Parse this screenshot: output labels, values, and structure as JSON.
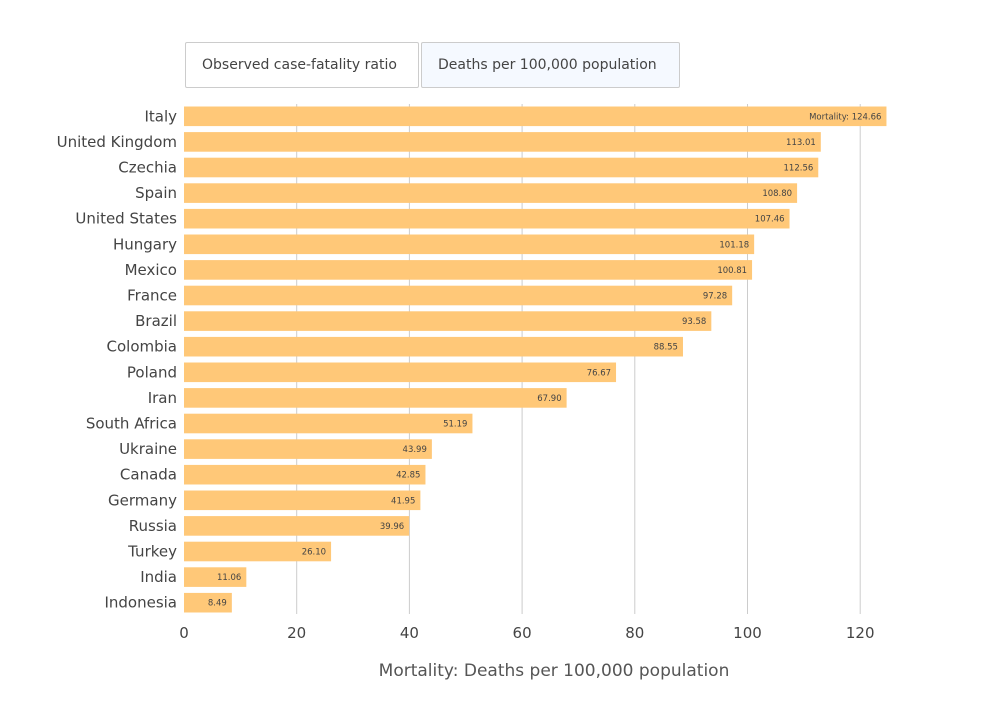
{
  "toggles": {
    "first_label": "Observed case-fatality ratio",
    "second_label": "Deaths per 100,000 population",
    "active": "second"
  },
  "colors": {
    "bar": "#ffc878",
    "grid": "#cccccc",
    "text": "#444444"
  },
  "chart_data": {
    "type": "bar",
    "orientation": "horizontal",
    "categories": [
      "Italy",
      "United Kingdom",
      "Czechia",
      "Spain",
      "United States",
      "Hungary",
      "Mexico",
      "France",
      "Brazil",
      "Colombia",
      "Poland",
      "Iran",
      "South Africa",
      "Ukraine",
      "Canada",
      "Germany",
      "Russia",
      "Turkey",
      "India",
      "Indonesia"
    ],
    "values": [
      124.66,
      113.01,
      112.56,
      108.8,
      107.46,
      101.18,
      100.81,
      97.28,
      93.58,
      88.55,
      76.67,
      67.9,
      51.19,
      43.99,
      42.85,
      41.95,
      39.96,
      26.1,
      11.06,
      8.49
    ],
    "data_labels": [
      "Mortality: 124.66",
      "113.01",
      "112.56",
      "108.80",
      "107.46",
      "101.18",
      "100.81",
      "97.28",
      "93.58",
      "88.55",
      "76.67",
      "67.90",
      "51.19",
      "43.99",
      "42.85",
      "41.95",
      "39.96",
      "26.10",
      "11.06",
      "8.49"
    ],
    "xlabel": "Mortality: Deaths per 100,000 population",
    "ylabel": "",
    "title": "",
    "xlim": [
      0,
      120
    ],
    "xticks": [
      "0",
      "20",
      "40",
      "60",
      "80",
      "100",
      "120"
    ],
    "grid": true,
    "legend": "none"
  }
}
